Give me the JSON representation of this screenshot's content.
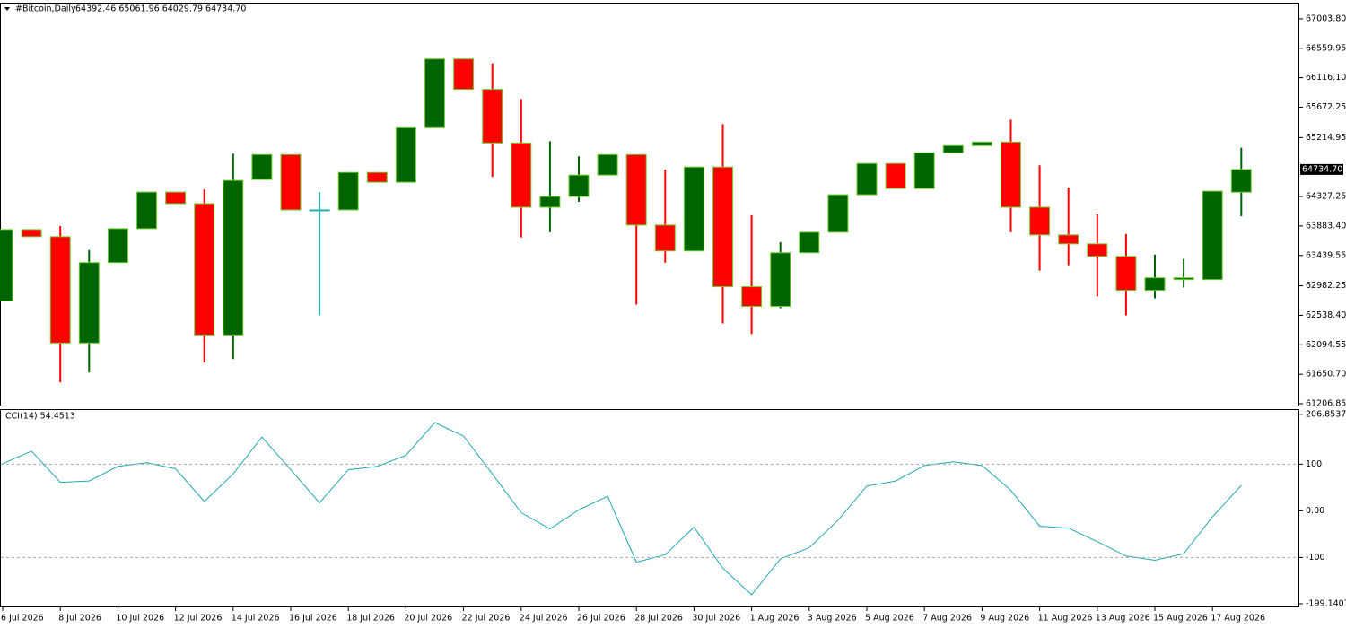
{
  "chart_data": [
    {
      "type": "candlestick",
      "title": "#Bitcoin,Daily",
      "ohlc_text": "64392.46 65061.96 64029.79 64734.70",
      "categories": [
        "6 Jul 2026",
        null,
        "8 Jul 2026",
        null,
        "10 Jul 2026",
        null,
        "12 Jul 2026",
        null,
        "14 Jul 2026",
        null,
        "16 Jul 2026",
        null,
        "18 Jul 2026",
        null,
        "20 Jul 2026",
        null,
        "22 Jul 2026",
        null,
        "24 Jul 2026",
        null,
        "26 Jul 2026",
        null,
        "28 Jul 2026",
        null,
        "30 Jul 2026",
        null,
        "1 Aug 2026",
        null,
        "3 Aug 2026",
        null,
        "5 Aug 2026",
        null,
        "7 Aug 2026",
        null,
        "9 Aug 2026",
        null,
        "11 Aug 2026",
        null,
        "13 Aug 2026",
        null,
        "15 Aug 2026",
        null,
        "17 Aug 2026",
        null
      ],
      "open": [
        62754,
        63830,
        63722,
        62121,
        63332,
        63843,
        64394,
        64220,
        62242,
        64583,
        64959,
        64126,
        64126,
        64690,
        64542,
        65363,
        66399,
        65941,
        65134,
        64166,
        64327,
        64650,
        64959,
        63897,
        63507,
        64771,
        62969,
        62673,
        63480,
        63789,
        64354,
        64825,
        64448,
        64986,
        65094,
        65148,
        64166,
        63749,
        63614,
        63426,
        62915,
        63076,
        63076,
        64392.46
      ],
      "high": [
        63830,
        63830,
        63884,
        63520,
        63843,
        64394,
        64394,
        64435,
        64973,
        64959,
        64959,
        64394,
        64690,
        64690,
        65363,
        66399,
        66399,
        66331,
        65793,
        65161,
        64932,
        64959,
        64959,
        64731,
        64771,
        65417,
        64045,
        63641,
        63789,
        64354,
        64825,
        64825,
        64986,
        65094,
        65148,
        65484,
        64798,
        64462,
        64058,
        63762,
        63453,
        63386,
        64408,
        65061.96
      ],
      "low": [
        62754,
        63722,
        61530,
        61678,
        63332,
        63843,
        64220,
        61825,
        61879,
        64583,
        64126,
        62538,
        64126,
        64542,
        64542,
        65363,
        65941,
        64623,
        63709,
        63789,
        64247,
        64650,
        62700,
        63332,
        63507,
        62417,
        62256,
        62646,
        63480,
        63789,
        64354,
        64448,
        64448,
        64986,
        65094,
        63789,
        63211,
        63292,
        62821,
        62538,
        62794,
        62955,
        63076,
        64029.79
      ],
      "close": [
        63830,
        63722,
        62121,
        63332,
        63843,
        64394,
        64220,
        62242,
        64569,
        64959,
        64126,
        64126,
        64690,
        64542,
        65363,
        66399,
        65941,
        65134,
        64166,
        64327,
        64650,
        64959,
        63897,
        63507,
        64771,
        62969,
        62673,
        63480,
        63789,
        64354,
        64825,
        64448,
        64986,
        65094,
        65148,
        64166,
        63749,
        63614,
        63426,
        62915,
        63103,
        63103,
        64408,
        64734.7
      ],
      "up_color": "#006400",
      "down_color": "#ff0000",
      "doji_color": "#20b2aa",
      "outline_color": "#6fd12a",
      "ylim": [
        61180,
        67246
      ],
      "yticks": [
        {
          "value": 67003.8,
          "label": "67003.80"
        },
        66559.95,
        {
          "value": 66116.1,
          "label": "66116.10"
        },
        65672.25,
        65214.95,
        64327.25,
        {
          "value": 63883.4,
          "label": "63883.40"
        },
        63439.55,
        62982.25,
        {
          "value": 62538.4,
          "label": "62538.40"
        },
        62094.55,
        {
          "value": 61650.7,
          "label": "61650.70"
        },
        61206.85
      ],
      "last_price": {
        "value": 64734.7,
        "label": "64734.70"
      }
    },
    {
      "type": "line",
      "title": "CCI(14) 54.4513",
      "color": "#20a8b4",
      "values": [
        101,
        128,
        61,
        64,
        95,
        103,
        90,
        20,
        79,
        158,
        88,
        17,
        88,
        95,
        119,
        189,
        160,
        79,
        -4,
        -39,
        2,
        31,
        -110,
        -94,
        -35,
        -123,
        -180,
        -103,
        -79,
        -20,
        53,
        64,
        97,
        105,
        97,
        44,
        -33,
        -37,
        -66,
        -97,
        -106,
        -92,
        -13,
        54.4513
      ],
      "ylim": [
        -205,
        216
      ],
      "yticks": [
        206.8537,
        100,
        {
          "value": 0,
          "label": "0.00"
        },
        -100,
        -199.1407
      ],
      "levels": [
        100,
        -100
      ]
    }
  ]
}
